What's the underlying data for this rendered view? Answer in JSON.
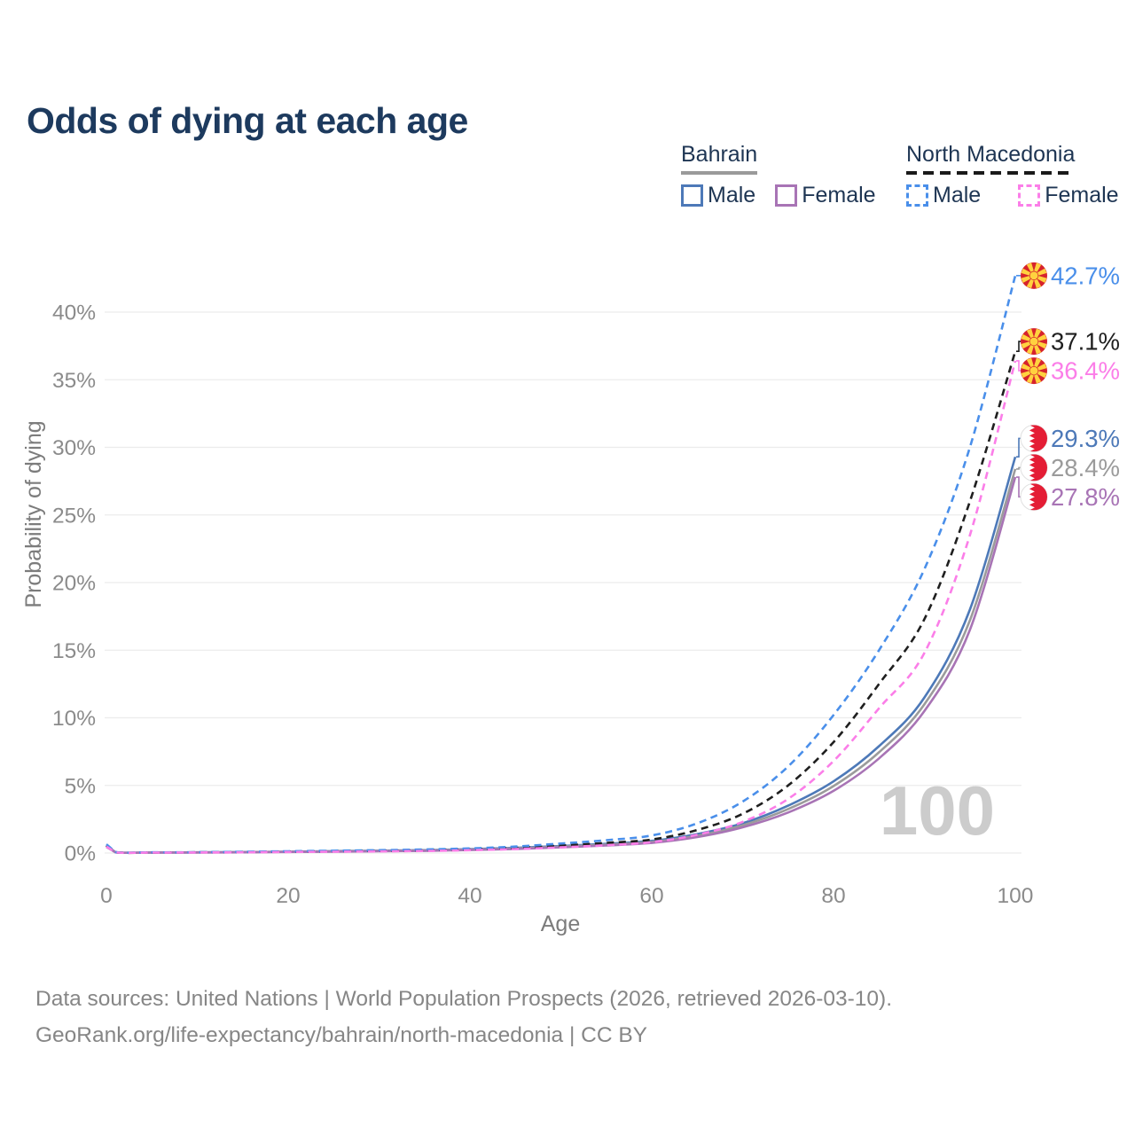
{
  "title": "Odds of dying at each age",
  "watermark": "100",
  "legend": {
    "groups": [
      {
        "country": "Bahrain",
        "line_style": "solid",
        "underline_color": "#9a9a9a",
        "items": [
          {
            "label": "Male",
            "color": "#4d79b8",
            "dashed": false
          },
          {
            "label": "Female",
            "color": "#a874b5",
            "dashed": false
          }
        ]
      },
      {
        "country": "North Macedonia",
        "line_style": "dashed",
        "underline_color": "#1a1a1a",
        "items": [
          {
            "label": "Male",
            "color": "#4a8fea",
            "dashed": true
          },
          {
            "label": "Female",
            "color": "#fb7ee8",
            "dashed": true
          }
        ]
      }
    ]
  },
  "chart_data": {
    "type": "line",
    "title": "Odds of dying at each age",
    "xlabel": "Age",
    "ylabel": "Probability of dying",
    "xlim": [
      0,
      100
    ],
    "ylim_percent": [
      0,
      43
    ],
    "x_ticks": [
      0,
      20,
      40,
      60,
      80,
      100
    ],
    "y_tick_values": [
      0,
      5,
      10,
      15,
      20,
      25,
      30,
      35,
      40
    ],
    "y_tick_labels": [
      "0%",
      "5%",
      "10%",
      "15%",
      "20%",
      "25%",
      "30%",
      "35%",
      "40%"
    ],
    "grid": "horizontal-only",
    "legend_position": "top-right",
    "ages": [
      0,
      1,
      5,
      10,
      15,
      20,
      25,
      30,
      35,
      40,
      45,
      50,
      55,
      60,
      65,
      70,
      75,
      80,
      85,
      90,
      95,
      100
    ],
    "series": [
      {
        "name": "North Macedonia Male",
        "country": "North Macedonia",
        "sex": "male",
        "color": "#4a8fea",
        "dashed": true,
        "flag": "north-macedonia",
        "end_value": 42.7,
        "end_label": "42.7%",
        "values": [
          0.65,
          0.07,
          0.05,
          0.06,
          0.09,
          0.13,
          0.17,
          0.21,
          0.26,
          0.34,
          0.48,
          0.7,
          0.95,
          1.3,
          2.2,
          3.8,
          6.4,
          10.2,
          15.0,
          21.0,
          30.0,
          42.7
        ]
      },
      {
        "name": "North Macedonia Both sexes",
        "country": "North Macedonia",
        "sex": "both",
        "color": "#1f1f1f",
        "dashed": true,
        "flag": "north-macedonia",
        "end_value": 37.1,
        "end_label": "37.1%",
        "values": [
          0.55,
          0.06,
          0.04,
          0.05,
          0.07,
          0.1,
          0.13,
          0.16,
          0.2,
          0.27,
          0.38,
          0.55,
          0.75,
          1.0,
          1.7,
          2.9,
          5.0,
          8.2,
          12.5,
          17.3,
          26.0,
          37.1
        ]
      },
      {
        "name": "North Macedonia Female",
        "country": "North Macedonia",
        "sex": "female",
        "color": "#fb7ee8",
        "dashed": true,
        "flag": "north-macedonia",
        "end_value": 36.4,
        "end_label": "36.4%",
        "values": [
          0.48,
          0.05,
          0.03,
          0.04,
          0.05,
          0.08,
          0.1,
          0.12,
          0.15,
          0.21,
          0.29,
          0.42,
          0.58,
          0.8,
          1.35,
          2.3,
          4.0,
          6.8,
          10.7,
          14.8,
          23.5,
          36.4
        ]
      },
      {
        "name": "Bahrain Male",
        "country": "Bahrain",
        "sex": "male",
        "color": "#4d79b8",
        "dashed": false,
        "flag": "bahrain",
        "end_value": 29.3,
        "end_label": "29.3%",
        "values": [
          0.55,
          0.06,
          0.04,
          0.05,
          0.07,
          0.1,
          0.14,
          0.17,
          0.21,
          0.28,
          0.38,
          0.52,
          0.68,
          0.9,
          1.4,
          2.2,
          3.5,
          5.3,
          7.9,
          11.5,
          18.0,
          29.3
        ]
      },
      {
        "name": "Bahrain Both sexes",
        "country": "Bahrain",
        "sex": "both",
        "color": "#9b9b9b",
        "dashed": false,
        "flag": "bahrain",
        "end_value": 28.4,
        "end_label": "28.4%",
        "values": [
          0.5,
          0.055,
          0.035,
          0.045,
          0.06,
          0.09,
          0.12,
          0.15,
          0.19,
          0.25,
          0.34,
          0.47,
          0.62,
          0.82,
          1.28,
          2.05,
          3.25,
          4.95,
          7.45,
          11.0,
          17.2,
          28.4
        ]
      },
      {
        "name": "Bahrain Female",
        "country": "Bahrain",
        "sex": "female",
        "color": "#a874b5",
        "dashed": false,
        "flag": "bahrain",
        "end_value": 27.8,
        "end_label": "27.8%",
        "values": [
          0.45,
          0.05,
          0.03,
          0.04,
          0.05,
          0.08,
          0.1,
          0.13,
          0.16,
          0.22,
          0.3,
          0.42,
          0.56,
          0.75,
          1.18,
          1.9,
          3.0,
          4.6,
          7.0,
          10.5,
          16.5,
          27.8
        ]
      }
    ]
  },
  "flag_colors": {
    "bahrain_red": "#e41d35",
    "north_macedonia_red": "#d6232c",
    "north_macedonia_yellow": "#ffd23f"
  },
  "footer": {
    "line1": "Data sources: United Nations | World Population Prospects (2026, retrieved 2026-03-10).",
    "line2": "GeoRank.org/life-expectancy/bahrain/north-macedonia | CC BY"
  }
}
